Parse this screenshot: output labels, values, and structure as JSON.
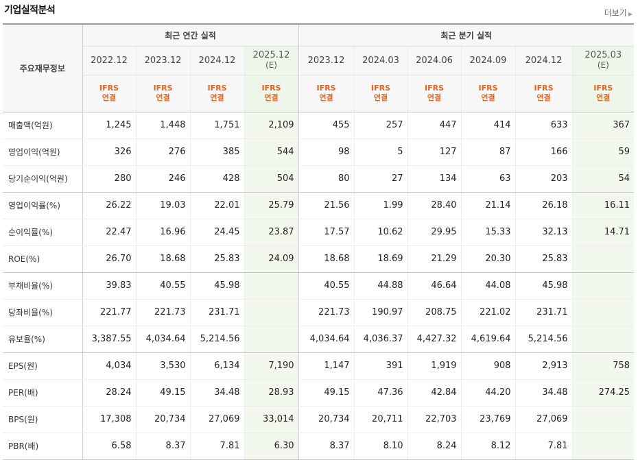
{
  "header": {
    "title": "기업실적분석",
    "more_label": "더보기"
  },
  "table": {
    "row_header": "주요재무정보",
    "annual_group": "최근 연간 실적",
    "quarter_group": "최근 분기 실적",
    "annual_periods": [
      {
        "year": "2022.12",
        "est": ""
      },
      {
        "year": "2023.12",
        "est": ""
      },
      {
        "year": "2024.12",
        "est": ""
      },
      {
        "year": "2025.12",
        "est": "(E)"
      }
    ],
    "quarter_periods": [
      {
        "year": "2023.12",
        "est": ""
      },
      {
        "year": "2024.03",
        "est": ""
      },
      {
        "year": "2024.06",
        "est": ""
      },
      {
        "year": "2024.09",
        "est": ""
      },
      {
        "year": "2024.12",
        "est": ""
      },
      {
        "year": "2025.03",
        "est": "(E)"
      }
    ],
    "basis_line1": "IFRS",
    "basis_line2": "연결",
    "rows": [
      {
        "label": "매출액(억원)",
        "values": [
          "1,245",
          "1,448",
          "1,751",
          "2,109",
          "455",
          "257",
          "447",
          "414",
          "633",
          "367"
        ]
      },
      {
        "label": "영업이익(억원)",
        "values": [
          "326",
          "276",
          "385",
          "544",
          "98",
          "5",
          "127",
          "87",
          "166",
          "59"
        ]
      },
      {
        "label": "당기순이익(억원)",
        "values": [
          "280",
          "246",
          "428",
          "504",
          "80",
          "27",
          "134",
          "63",
          "203",
          "54"
        ]
      },
      {
        "label": "영업이익률(%)",
        "values": [
          "26.22",
          "19.03",
          "22.01",
          "25.79",
          "21.56",
          "1.99",
          "28.40",
          "21.14",
          "26.18",
          "16.11"
        ]
      },
      {
        "label": "순이익률(%)",
        "values": [
          "22.47",
          "16.96",
          "24.45",
          "23.87",
          "17.57",
          "10.62",
          "29.95",
          "15.33",
          "32.13",
          "14.71"
        ]
      },
      {
        "label": "ROE(%)",
        "values": [
          "26.70",
          "18.68",
          "25.83",
          "24.09",
          "18.68",
          "18.69",
          "21.29",
          "20.30",
          "25.83",
          ""
        ]
      },
      {
        "label": "부채비율(%)",
        "values": [
          "39.83",
          "40.55",
          "45.98",
          "",
          "40.55",
          "44.88",
          "46.64",
          "44.08",
          "45.98",
          ""
        ]
      },
      {
        "label": "당좌비율(%)",
        "values": [
          "221.77",
          "221.73",
          "231.71",
          "",
          "221.73",
          "190.97",
          "208.75",
          "221.02",
          "231.71",
          ""
        ]
      },
      {
        "label": "유보율(%)",
        "values": [
          "3,387.55",
          "4,034.64",
          "5,214.56",
          "",
          "4,034.64",
          "4,036.37",
          "4,427.32",
          "4,619.64",
          "5,214.56",
          ""
        ]
      },
      {
        "label": "EPS(원)",
        "values": [
          "4,034",
          "3,530",
          "6,134",
          "7,190",
          "1,147",
          "391",
          "1,919",
          "908",
          "2,913",
          "758"
        ]
      },
      {
        "label": "PER(배)",
        "values": [
          "28.24",
          "49.15",
          "34.48",
          "28.93",
          "49.15",
          "47.36",
          "42.84",
          "44.20",
          "34.48",
          "274.25"
        ]
      },
      {
        "label": "BPS(원)",
        "values": [
          "17,308",
          "20,734",
          "27,069",
          "33,014",
          "20,734",
          "20,711",
          "22,703",
          "23,769",
          "27,069",
          ""
        ]
      },
      {
        "label": "PBR(배)",
        "values": [
          "6.58",
          "8.37",
          "7.81",
          "6.30",
          "8.37",
          "8.10",
          "8.24",
          "8.12",
          "7.81",
          ""
        ]
      }
    ]
  }
}
